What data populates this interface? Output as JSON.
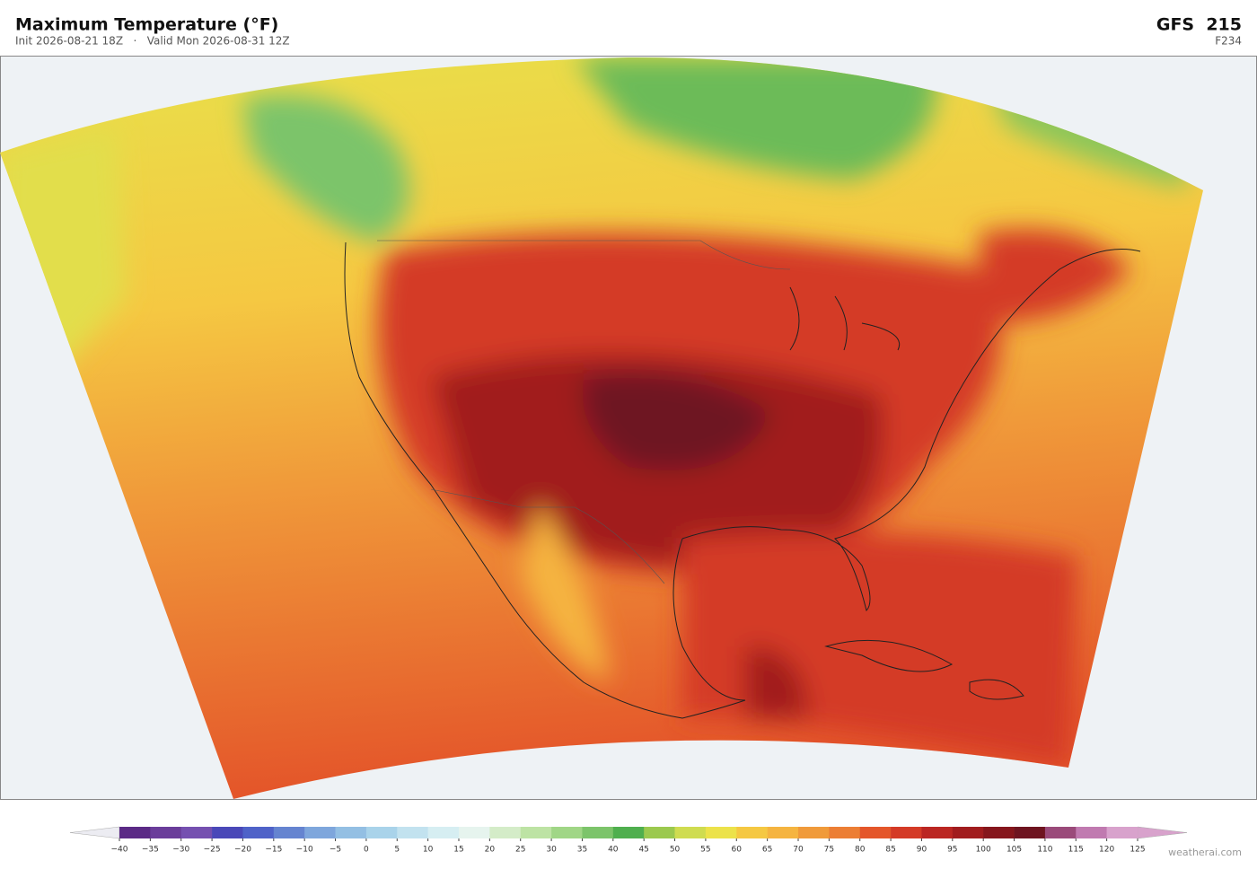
{
  "header": {
    "title": "Maximum Temperature  (°F)",
    "subtitle": "Init 2026-08-21 18Z   ·   Valid Mon 2026-08-31 12Z",
    "model": "GFS  215",
    "forecast_hour": "F234"
  },
  "colorbar": {
    "ticks": [
      {
        "value": -40,
        "label": "−40"
      },
      {
        "value": -35,
        "label": "−35"
      },
      {
        "value": -30,
        "label": "−30"
      },
      {
        "value": -25,
        "label": "−25"
      },
      {
        "value": -20,
        "label": "−20"
      },
      {
        "value": -15,
        "label": "−15"
      },
      {
        "value": -10,
        "label": "−10"
      },
      {
        "value": -5,
        "label": "−5"
      },
      0,
      5,
      10,
      15,
      20,
      25,
      30,
      35,
      40,
      45,
      50,
      55,
      60,
      65,
      70,
      75,
      80,
      85,
      90,
      95,
      100,
      105,
      110,
      115,
      120,
      125
    ],
    "colors": [
      "#5b2a86",
      "#6a3d9a",
      "#7550b0",
      "#4a48b8",
      "#4f62c8",
      "#6584d0",
      "#7ea6dc",
      "#93bfe3",
      "#a9d3ea",
      "#c2e2ef",
      "#d6eef2",
      "#e6f4ee",
      "#d4ecc8",
      "#bde3a4",
      "#a0d686",
      "#7cc46a",
      "#4faf4e",
      "#9bc94e",
      "#cfdc50",
      "#ece24a",
      "#f5c842",
      "#f5b440",
      "#f09a3a",
      "#ec7e34",
      "#e4562a",
      "#d43a26",
      "#bb2622",
      "#a11c1e",
      "#86161c",
      "#6e1420",
      "#9a4a7a",
      "#c07ab0",
      "#d8a2cc"
    ],
    "under_color": "#ececf2",
    "over_color": "#d8a2cc"
  },
  "watermark": "weatherai.com"
}
